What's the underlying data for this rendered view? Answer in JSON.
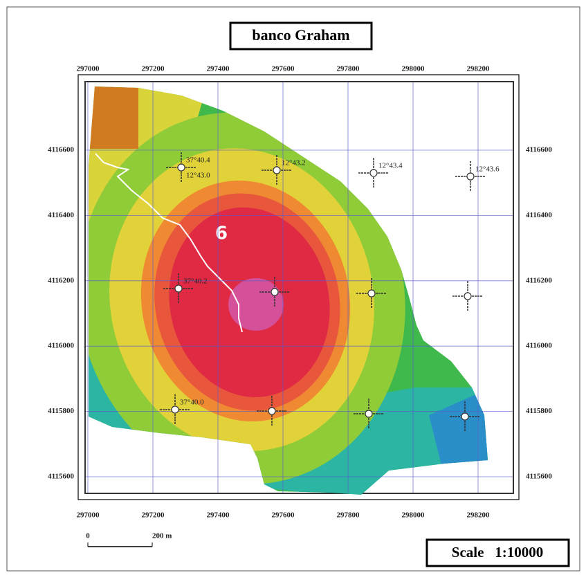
{
  "title": "banco Graham",
  "x_ticks": [
    297000,
    297200,
    297400,
    297600,
    297800,
    298000,
    298200
  ],
  "y_ticks": [
    4116600,
    4116400,
    4116200,
    4116000,
    4115800,
    4115600
  ],
  "area_label": "6",
  "markers": [
    {
      "labels": [
        "37°40.4",
        "12°43.0"
      ]
    },
    {
      "labels": [
        "12°43.2"
      ]
    },
    {
      "labels": [
        "12°43.4"
      ]
    },
    {
      "labels": [
        "12°43.6"
      ]
    },
    {
      "labels": [
        "37°40.2"
      ]
    },
    {
      "labels": [
        "37°40.0"
      ]
    }
  ],
  "scale_bar": {
    "start": "0",
    "end": "200 m"
  },
  "scale": "Scale   1:10000"
}
